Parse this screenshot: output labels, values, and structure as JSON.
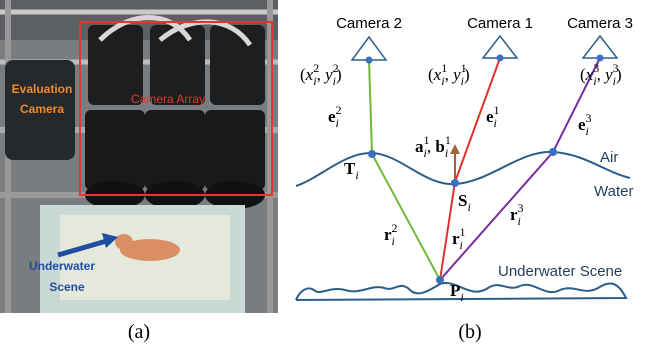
{
  "panel_a": {
    "caption": "(a)",
    "evaluation_camera": [
      "Evaluation",
      "Camera"
    ],
    "camera_array": "Camera Array",
    "underwater_scene": [
      "Underwater",
      "Scene"
    ]
  },
  "panel_b": {
    "caption": "(b)",
    "cameras": [
      "Camera 2",
      "Camera 1",
      "Camera 3"
    ],
    "pixels": [
      [
        "(",
        {
          "base": "x",
          "sub": "i",
          "sup": "2"
        },
        ", ",
        {
          "base": "y",
          "sub": "i",
          "sup": "2"
        },
        ")"
      ],
      [
        "(",
        {
          "base": "x",
          "sub": "i",
          "sup": "1"
        },
        ", ",
        {
          "base": "y",
          "sub": "i",
          "sup": "1"
        },
        ")"
      ],
      [
        "(",
        {
          "base": "x",
          "sub": "i",
          "sup": "3"
        },
        ", ",
        {
          "base": "y",
          "sub": "i",
          "sup": "3"
        },
        ")"
      ]
    ],
    "rays_air": [
      [
        {
          "base": "e",
          "sub": "i",
          "sup": "2"
        }
      ],
      [
        {
          "base": "e",
          "sub": "i",
          "sup": "1"
        }
      ],
      [
        {
          "base": "e",
          "sub": "i",
          "sup": "3"
        }
      ]
    ],
    "rays_water": [
      [
        {
          "base": "r",
          "sub": "i",
          "sup": "2"
        }
      ],
      [
        {
          "base": "r",
          "sub": "i",
          "sup": "1"
        }
      ],
      [
        {
          "base": "r",
          "sub": "i",
          "sup": "3"
        }
      ]
    ],
    "normal": [
      {
        "base": "a",
        "sub": "i",
        "sup": "1"
      },
      ", ",
      {
        "base": "b",
        "sub": "i",
        "sup": "1"
      }
    ],
    "points": {
      "T": [
        {
          "base": "T",
          "sub": "i"
        }
      ],
      "S": [
        {
          "base": "S",
          "sub": "i"
        }
      ],
      "P": [
        {
          "base": "P",
          "sub": "i"
        }
      ]
    },
    "air": "Air",
    "water": "Water",
    "scene": "Underwater Scene"
  }
}
